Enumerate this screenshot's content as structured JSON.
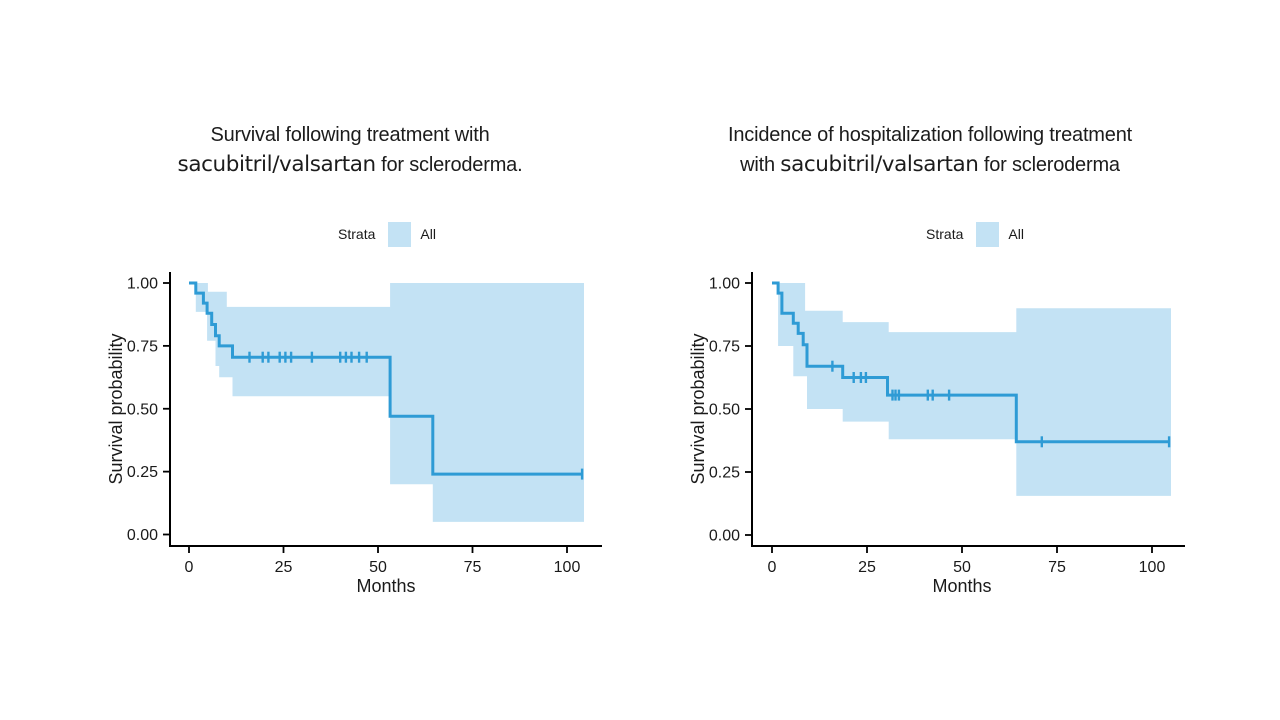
{
  "page": {
    "background": "#ffffff"
  },
  "colors": {
    "curve": "#2E9BD5",
    "band": "#C3E2F4",
    "axis": "#000000",
    "tick_text": "#1A1A1A",
    "title_text": "#1C1C1C"
  },
  "chart_data": [
    {
      "id": "survival",
      "type": "line",
      "subtype": "kaplan-meier-step",
      "title": "Survival following treatment with sacubitril/valsartan for scleroderma.",
      "title_line1": "Survival following treatment with",
      "title_line2_pre": "",
      "title_line2_drug": "sacubitril/valsartan",
      "title_line2_post": " for scleroderma.",
      "legend_title": "Strata",
      "legend_label": "All",
      "xlabel": "Months",
      "ylabel": "Survival probability",
      "x_ticks": [
        0,
        25,
        50,
        75,
        100
      ],
      "y_tick_values": [
        1,
        0.75,
        0.5,
        0.25,
        0
      ],
      "y_tick_labels": [
        "1.00",
        "0.75",
        "0.50",
        "0.25",
        "0.00"
      ],
      "xlim": [
        -5,
        109
      ],
      "ylim": [
        0,
        1.04
      ],
      "grid": false,
      "legend_position": "top",
      "series": [
        {
          "name": "All",
          "step_points": [
            [
              0,
              1
            ],
            [
              1.8,
              1
            ],
            [
              1.8,
              0.96
            ],
            [
              3.8,
              0.96
            ],
            [
              3.8,
              0.92
            ],
            [
              4.8,
              0.92
            ],
            [
              4.8,
              0.88
            ],
            [
              6,
              0.88
            ],
            [
              6,
              0.835
            ],
            [
              7,
              0.835
            ],
            [
              7,
              0.79
            ],
            [
              8,
              0.79
            ],
            [
              8,
              0.75
            ],
            [
              11.5,
              0.75
            ],
            [
              11.5,
              0.705
            ],
            [
              53.2,
              0.705
            ],
            [
              53.2,
              0.47
            ],
            [
              64.5,
              0.47
            ],
            [
              64.5,
              0.24
            ],
            [
              104,
              0.24
            ]
          ],
          "censor_marks": [
            [
              16,
              0.705
            ],
            [
              19.5,
              0.705
            ],
            [
              21,
              0.705
            ],
            [
              24,
              0.705
            ],
            [
              25.5,
              0.705
            ],
            [
              27,
              0.705
            ],
            [
              32.5,
              0.705
            ],
            [
              40,
              0.705
            ],
            [
              41.5,
              0.705
            ],
            [
              43,
              0.705
            ],
            [
              45,
              0.705
            ],
            [
              47,
              0.705
            ],
            [
              104,
              0.24
            ]
          ],
          "ci_upper": [
            [
              1.8,
              1
            ],
            [
              5,
              1
            ],
            [
              5,
              0.965
            ],
            [
              10,
              0.965
            ],
            [
              10,
              0.905
            ],
            [
              53.2,
              0.905
            ],
            [
              53.2,
              1
            ],
            [
              104.5,
              1
            ]
          ],
          "ci_lower": [
            [
              1.8,
              0.885
            ],
            [
              4.8,
              0.885
            ],
            [
              4.8,
              0.77
            ],
            [
              7,
              0.77
            ],
            [
              7,
              0.67
            ],
            [
              8,
              0.67
            ],
            [
              8,
              0.625
            ],
            [
              11.5,
              0.625
            ],
            [
              11.5,
              0.55
            ],
            [
              53.2,
              0.55
            ],
            [
              53.2,
              0.2
            ],
            [
              64.5,
              0.2
            ],
            [
              64.5,
              0.05
            ],
            [
              104.5,
              0.05
            ]
          ]
        }
      ]
    },
    {
      "id": "hospitalization",
      "type": "line",
      "subtype": "kaplan-meier-step",
      "title": "Incidence of hospitalization following treatment with sacubitril/valsartan for scleroderma",
      "title_line1": "Incidence of hospitalization following treatment",
      "title_line2_pre": "with ",
      "title_line2_drug": "sacubitril/valsartan",
      "title_line2_post": " for scleroderma",
      "legend_title": "Strata",
      "legend_label": "All",
      "xlabel": "Months",
      "ylabel": "Survival probability",
      "x_ticks": [
        0,
        25,
        50,
        75,
        100
      ],
      "y_tick_values": [
        1,
        0.75,
        0.5,
        0.25,
        0
      ],
      "y_tick_labels": [
        "1.00",
        "0.75",
        "0.50",
        "0.25",
        "0.00"
      ],
      "xlim": [
        -5,
        109
      ],
      "ylim": [
        0,
        1.04
      ],
      "grid": false,
      "legend_position": "top",
      "series": [
        {
          "name": "All",
          "step_points": [
            [
              0,
              1
            ],
            [
              1.6,
              1
            ],
            [
              1.6,
              0.96
            ],
            [
              2.6,
              0.96
            ],
            [
              2.6,
              0.88
            ],
            [
              5.6,
              0.88
            ],
            [
              5.6,
              0.84
            ],
            [
              6.9,
              0.84
            ],
            [
              6.9,
              0.8
            ],
            [
              8.2,
              0.8
            ],
            [
              8.2,
              0.755
            ],
            [
              9.2,
              0.755
            ],
            [
              9.2,
              0.67
            ],
            [
              18.6,
              0.67
            ],
            [
              18.6,
              0.625
            ],
            [
              30.4,
              0.625
            ],
            [
              30.4,
              0.555
            ],
            [
              64.3,
              0.555
            ],
            [
              64.3,
              0.37
            ],
            [
              104.5,
              0.37
            ]
          ],
          "censor_marks": [
            [
              15.9,
              0.67
            ],
            [
              21.5,
              0.625
            ],
            [
              23.4,
              0.625
            ],
            [
              24.7,
              0.625
            ],
            [
              31.7,
              0.555
            ],
            [
              32.5,
              0.555
            ],
            [
              33.4,
              0.555
            ],
            [
              41,
              0.555
            ],
            [
              42.3,
              0.555
            ],
            [
              46.6,
              0.555
            ],
            [
              71,
              0.37
            ],
            [
              104.5,
              0.37
            ]
          ],
          "ci_upper": [
            [
              1.6,
              1
            ],
            [
              8.7,
              1
            ],
            [
              8.7,
              0.89
            ],
            [
              18.6,
              0.89
            ],
            [
              18.6,
              0.845
            ],
            [
              30.7,
              0.845
            ],
            [
              30.7,
              0.805
            ],
            [
              64.3,
              0.805
            ],
            [
              64.3,
              0.9
            ],
            [
              105,
              0.9
            ]
          ],
          "ci_lower": [
            [
              1.6,
              0.75
            ],
            [
              5.6,
              0.75
            ],
            [
              5.6,
              0.63
            ],
            [
              9.2,
              0.63
            ],
            [
              9.2,
              0.5
            ],
            [
              18.6,
              0.5
            ],
            [
              18.6,
              0.45
            ],
            [
              30.7,
              0.45
            ],
            [
              30.7,
              0.38
            ],
            [
              64.3,
              0.38
            ],
            [
              64.3,
              0.155
            ],
            [
              105,
              0.155
            ]
          ]
        }
      ]
    }
  ]
}
